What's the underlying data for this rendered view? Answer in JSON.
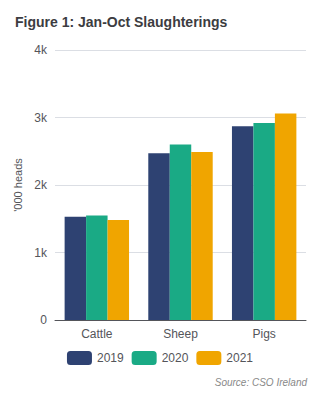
{
  "chart_data": {
    "type": "bar",
    "title": "Figure 1: Jan-Oct Slaughterings",
    "ylabel": "'000 heads",
    "source": "Source: CSO Ireland",
    "categories": [
      "Cattle",
      "Sheep",
      "Pigs"
    ],
    "series": [
      {
        "name": "2019",
        "color": "#2e4272",
        "values": [
          1530,
          2470,
          2870
        ]
      },
      {
        "name": "2020",
        "color": "#1aaa85",
        "values": [
          1550,
          2600,
          2920
        ]
      },
      {
        "name": "2021",
        "color": "#f0a500",
        "values": [
          1480,
          2490,
          3060
        ]
      }
    ],
    "ylim": [
      0,
      4000
    ],
    "yticks": [
      0,
      {
        "value": 1000,
        "label": "1k"
      },
      {
        "value": 2000,
        "label": "2k"
      },
      {
        "value": 3000,
        "label": "3k"
      },
      {
        "value": 4000,
        "label": "4k"
      }
    ],
    "grid": true,
    "legend": "bottom"
  }
}
